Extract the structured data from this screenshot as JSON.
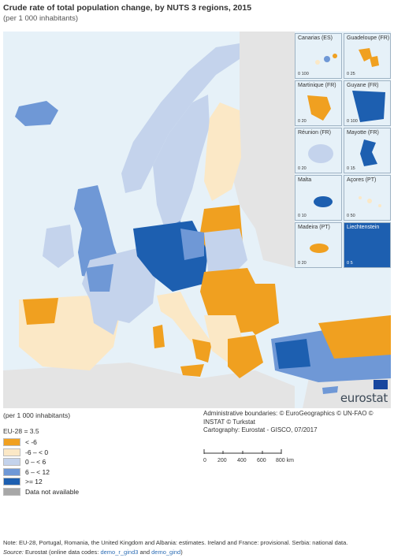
{
  "title": "Crude rate of total population change, by NUTS 3 regions, 2015",
  "subtitle": "(per 1 000 inhabitants)",
  "colors": {
    "lt_minus6": "#f0a020",
    "minus6_0": "#fbe8c6",
    "zero_6": "#c4d3ec",
    "six_12": "#6f98d6",
    "ge12": "#1d5fb0",
    "na": "#a7a7a7",
    "sea": "#e6f1f8",
    "nonEU": "#e4e4e4"
  },
  "insets": [
    {
      "label": "Canarias (ES)",
      "scale": "0   100"
    },
    {
      "label": "Guadeloupe (FR)",
      "scale": "0   25"
    },
    {
      "label": "Martinique (FR)",
      "scale": "0   20"
    },
    {
      "label": "Guyane (FR)",
      "scale": "0   100"
    },
    {
      "label": "Réunion (FR)",
      "scale": "0   20"
    },
    {
      "label": "Mayotte (FR)",
      "scale": "0   15"
    },
    {
      "label": "Malta",
      "scale": "0   10"
    },
    {
      "label": "Açores (PT)",
      "scale": "0   50"
    },
    {
      "label": "Madeira (PT)",
      "scale": "0   20"
    },
    {
      "label": "Liechtenstein",
      "scale": "0   5"
    }
  ],
  "logo": "eurostat",
  "legend": {
    "title": "(per 1 000 inhabitants)",
    "eu_average": "EU-28 = 3.5",
    "items": [
      {
        "label": "< -6",
        "color": "#f0a020"
      },
      {
        "label": "-6 – < 0",
        "color": "#fbe8c6"
      },
      {
        "label": "0 – < 6",
        "color": "#c4d3ec"
      },
      {
        "label": "6 – < 12",
        "color": "#6f98d6"
      },
      {
        "label": ">= 12",
        "color": "#1d5fb0"
      },
      {
        "label": "Data not available",
        "color": "#a7a7a7"
      }
    ]
  },
  "credits": {
    "boundaries": "Administrative boundaries: © EuroGeographics © UN-FAO © INSTAT © Turkstat",
    "cartography": "Cartography: Eurostat - GISCO, 07/2017"
  },
  "scale_bar": {
    "labels": [
      "0",
      "200",
      "400",
      "600",
      "800 km"
    ]
  },
  "note": "Note: EU-28, Portugal, Romania, the United Kingdom and Albania: estimates. Ireland and France: provisional. Serbia: national data.",
  "source": {
    "label": "Source:",
    "text1": "Eurostat (online data codes:",
    "code1": "demo_r_gind3",
    "and": "and",
    "code2": "demo_gind",
    "close": ")"
  }
}
